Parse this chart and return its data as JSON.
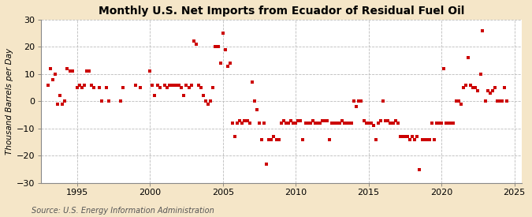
{
  "title": "Monthly U.S. Net Imports from Ecuador of Residual Fuel Oil",
  "ylabel": "Thousand Barrels per Day",
  "source": "Source: U.S. Energy Information Administration",
  "ylim": [
    -30,
    30
  ],
  "xlim": [
    1992.5,
    2025.5
  ],
  "yticks": [
    -30,
    -20,
    -10,
    0,
    10,
    20,
    30
  ],
  "xticks": [
    1995,
    2000,
    2005,
    2010,
    2015,
    2020,
    2025
  ],
  "figure_bg": "#f5e6c8",
  "plot_bg": "#ffffff",
  "marker_color": "#cc0000",
  "marker_size": 10,
  "title_fontsize": 10,
  "label_fontsize": 7.5,
  "tick_fontsize": 8,
  "source_fontsize": 7,
  "scatter_data": [
    [
      1993.0,
      6
    ],
    [
      1993.17,
      12
    ],
    [
      1993.33,
      8
    ],
    [
      1993.5,
      10
    ],
    [
      1993.67,
      -1
    ],
    [
      1993.83,
      2
    ],
    [
      1994.0,
      -1
    ],
    [
      1994.17,
      0
    ],
    [
      1994.33,
      12
    ],
    [
      1994.5,
      11
    ],
    [
      1994.67,
      11
    ],
    [
      1995.0,
      5
    ],
    [
      1995.17,
      6
    ],
    [
      1995.33,
      5
    ],
    [
      1995.5,
      6
    ],
    [
      1995.67,
      11
    ],
    [
      1995.83,
      11
    ],
    [
      1996.0,
      6
    ],
    [
      1996.17,
      5
    ],
    [
      1996.5,
      5
    ],
    [
      1996.67,
      0
    ],
    [
      1997.0,
      5
    ],
    [
      1997.17,
      0
    ],
    [
      1998.0,
      0
    ],
    [
      1998.17,
      5
    ],
    [
      1999.0,
      6
    ],
    [
      1999.33,
      5
    ],
    [
      2000.0,
      11
    ],
    [
      2000.17,
      6
    ],
    [
      2000.33,
      2
    ],
    [
      2000.5,
      6
    ],
    [
      2000.67,
      5
    ],
    [
      2001.0,
      6
    ],
    [
      2001.17,
      5
    ],
    [
      2001.33,
      6
    ],
    [
      2001.5,
      6
    ],
    [
      2001.67,
      6
    ],
    [
      2001.83,
      6
    ],
    [
      2002.0,
      6
    ],
    [
      2002.17,
      5
    ],
    [
      2002.33,
      2
    ],
    [
      2002.5,
      6
    ],
    [
      2002.67,
      5
    ],
    [
      2002.83,
      6
    ],
    [
      2003.0,
      22
    ],
    [
      2003.17,
      21
    ],
    [
      2003.33,
      6
    ],
    [
      2003.5,
      5
    ],
    [
      2003.67,
      2
    ],
    [
      2003.83,
      0
    ],
    [
      2004.0,
      -1
    ],
    [
      2004.17,
      0
    ],
    [
      2004.33,
      5
    ],
    [
      2004.5,
      20
    ],
    [
      2004.67,
      20
    ],
    [
      2004.83,
      14
    ],
    [
      2005.0,
      25
    ],
    [
      2005.17,
      19
    ],
    [
      2005.33,
      13
    ],
    [
      2005.5,
      14
    ],
    [
      2005.67,
      -8
    ],
    [
      2005.83,
      -13
    ],
    [
      2006.0,
      -8
    ],
    [
      2006.17,
      -7
    ],
    [
      2006.33,
      -8
    ],
    [
      2006.5,
      -7
    ],
    [
      2006.67,
      -7
    ],
    [
      2006.83,
      -8
    ],
    [
      2007.0,
      7
    ],
    [
      2007.17,
      0
    ],
    [
      2007.33,
      -3
    ],
    [
      2007.5,
      -8
    ],
    [
      2007.67,
      -14
    ],
    [
      2007.83,
      -8
    ],
    [
      2008.0,
      -23
    ],
    [
      2008.17,
      -14
    ],
    [
      2008.33,
      -14
    ],
    [
      2008.5,
      -13
    ],
    [
      2008.67,
      -14
    ],
    [
      2008.83,
      -14
    ],
    [
      2009.0,
      -8
    ],
    [
      2009.17,
      -7
    ],
    [
      2009.33,
      -8
    ],
    [
      2009.5,
      -8
    ],
    [
      2009.67,
      -7
    ],
    [
      2009.83,
      -8
    ],
    [
      2010.0,
      -8
    ],
    [
      2010.17,
      -7
    ],
    [
      2010.33,
      -7
    ],
    [
      2010.5,
      -14
    ],
    [
      2010.67,
      -8
    ],
    [
      2010.83,
      -8
    ],
    [
      2011.0,
      -8
    ],
    [
      2011.17,
      -7
    ],
    [
      2011.33,
      -8
    ],
    [
      2011.5,
      -8
    ],
    [
      2011.67,
      -8
    ],
    [
      2011.83,
      -7
    ],
    [
      2012.0,
      -7
    ],
    [
      2012.17,
      -7
    ],
    [
      2012.33,
      -14
    ],
    [
      2012.5,
      -8
    ],
    [
      2012.67,
      -8
    ],
    [
      2012.83,
      -8
    ],
    [
      2013.0,
      -8
    ],
    [
      2013.17,
      -7
    ],
    [
      2013.33,
      -8
    ],
    [
      2013.5,
      -8
    ],
    [
      2013.67,
      -8
    ],
    [
      2013.83,
      -8
    ],
    [
      2014.0,
      0
    ],
    [
      2014.17,
      -2
    ],
    [
      2014.33,
      0
    ],
    [
      2014.5,
      0
    ],
    [
      2014.67,
      -7
    ],
    [
      2014.83,
      -8
    ],
    [
      2015.0,
      -8
    ],
    [
      2015.17,
      -8
    ],
    [
      2015.33,
      -9
    ],
    [
      2015.5,
      -14
    ],
    [
      2015.67,
      -8
    ],
    [
      2015.83,
      -7
    ],
    [
      2016.0,
      0
    ],
    [
      2016.17,
      -7
    ],
    [
      2016.33,
      -7
    ],
    [
      2016.5,
      -8
    ],
    [
      2016.67,
      -8
    ],
    [
      2016.83,
      -7
    ],
    [
      2017.0,
      -8
    ],
    [
      2017.17,
      -13
    ],
    [
      2017.33,
      -13
    ],
    [
      2017.5,
      -13
    ],
    [
      2017.67,
      -13
    ],
    [
      2017.83,
      -14
    ],
    [
      2018.0,
      -13
    ],
    [
      2018.17,
      -14
    ],
    [
      2018.33,
      -13
    ],
    [
      2018.5,
      -25
    ],
    [
      2018.67,
      -14
    ],
    [
      2018.83,
      -14
    ],
    [
      2019.0,
      -14
    ],
    [
      2019.17,
      -14
    ],
    [
      2019.33,
      -8
    ],
    [
      2019.5,
      -14
    ],
    [
      2019.67,
      -8
    ],
    [
      2019.83,
      -8
    ],
    [
      2020.0,
      -8
    ],
    [
      2020.17,
      12
    ],
    [
      2020.33,
      -8
    ],
    [
      2020.5,
      -8
    ],
    [
      2020.67,
      -8
    ],
    [
      2020.83,
      -8
    ],
    [
      2021.0,
      0
    ],
    [
      2021.17,
      0
    ],
    [
      2021.33,
      -1
    ],
    [
      2021.5,
      5
    ],
    [
      2021.67,
      6
    ],
    [
      2021.83,
      16
    ],
    [
      2022.0,
      6
    ],
    [
      2022.17,
      5
    ],
    [
      2022.33,
      5
    ],
    [
      2022.5,
      4
    ],
    [
      2022.67,
      10
    ],
    [
      2022.83,
      26
    ],
    [
      2023.0,
      0
    ],
    [
      2023.17,
      4
    ],
    [
      2023.33,
      3
    ],
    [
      2023.5,
      4
    ],
    [
      2023.67,
      5
    ],
    [
      2023.83,
      0
    ],
    [
      2024.0,
      0
    ],
    [
      2024.17,
      0
    ],
    [
      2024.33,
      5
    ],
    [
      2024.5,
      0
    ]
  ]
}
